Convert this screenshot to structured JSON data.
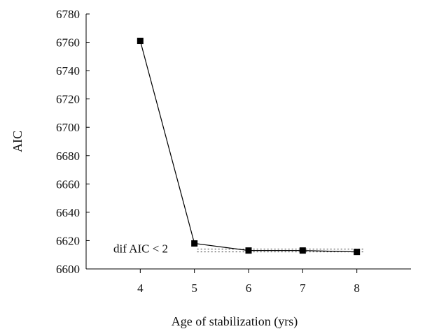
{
  "chart_data": {
    "type": "line",
    "title": "",
    "xlabel": "Age of stabilization (yrs)",
    "ylabel": "AIC",
    "x": [
      4,
      5,
      6,
      7,
      8
    ],
    "y": [
      6761,
      6618,
      6613,
      6613,
      6612
    ],
    "xlim": [
      3,
      9
    ],
    "ylim": [
      6600,
      6780
    ],
    "x_ticks": [
      "4",
      "5",
      "6",
      "7",
      "8"
    ],
    "y_ticks": [
      "6600",
      "6620",
      "6640",
      "6660",
      "6680",
      "6700",
      "6720",
      "6740",
      "6760",
      "6780"
    ],
    "annotation": "dif AIC < 2",
    "reference_band": [
      6612,
      6614
    ],
    "grid": false,
    "marker": "square",
    "line_color": "#000000"
  }
}
